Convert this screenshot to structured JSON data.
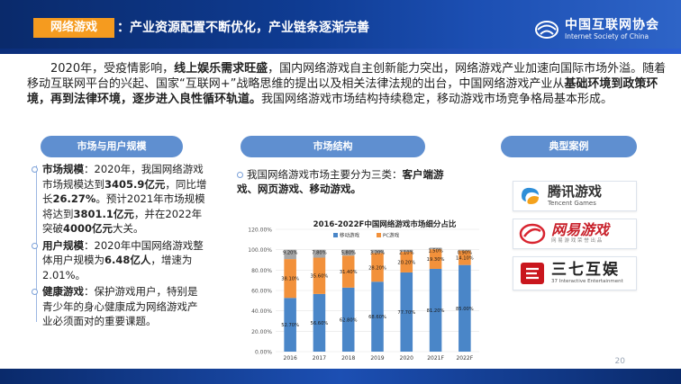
{
  "header": {
    "tag": "网络游戏",
    "title_rest": "：产业资源配置不断优化，产业链条逐渐完善",
    "org_cn": "中国互联网协会",
    "org_en": "Internet Society of China"
  },
  "intro": {
    "t1": "2020年，受疫情影响，",
    "b1": "线上娱乐需求旺盛",
    "t2": "，国内网络游戏自主创新能力突出，网络游戏产业加速向国际市场外溢。随着移动互联网平台的兴起、国家“互联网+”战略思维的提出以及相关法律法规的出台，中国网络游戏产业从",
    "b2": "基础环境到政策环境，再到法律环境，逐步进入良性循环轨道。",
    "t3": "我国网络游戏市场结构持续稳定，移动游戏市场竞争格局基本形成。"
  },
  "pills": {
    "market": "市场与用户规模",
    "structure": "市场结构",
    "cases": "典型案例"
  },
  "col1": {
    "p1_label": "市场规模",
    "p1_a": "：2020年，我国网络游戏市场规模达到",
    "p1_b": "3405.9亿元",
    "p1_c": "，同比增长",
    "p1_d": "26.27%",
    "p1_e": "。预计2021年市场规模将达到",
    "p1_f": "3801.1亿元",
    "p1_g": "，并在2022年突破",
    "p1_h": "4000亿元",
    "p1_i": "大关。",
    "p2_label": "用户规模",
    "p2_a": "：2020年中国网络游戏整体用户规模为",
    "p2_b": "6.48亿人",
    "p2_c": "，增速为2.01%。",
    "p3_label": "健康游戏",
    "p3_a": "：保护游戏用户，特别是青少年的身心健康成为网络游戏产业必须面对的重要课题。"
  },
  "col2": {
    "a": "我国网络游戏市场主要分为三类：",
    "b": "客户端游戏、网页游戏、移动游戏。"
  },
  "cases": {
    "tencent_cn": "腾讯游戏",
    "tencent_en": "Tencent Games",
    "netease_cn": "网易游戏",
    "netease_sub": "网 易 游 戏 荣 誉 出 品",
    "s37_cn": "三七互娱",
    "s37_en": "37 Interactive Entertainment"
  },
  "page_number": "20",
  "colors": {
    "header_dark": "#0a2a6b",
    "header_light": "#2e64c7",
    "accent_orange": "#f59b1f",
    "pill_blue": "#5f8fd0",
    "mobile_blue": "#4a86c8",
    "pc_orange": "#f2913b",
    "web_gray": "#a6a6a6"
  },
  "chart_data": {
    "type": "bar",
    "stacked": true,
    "title": "2016-2022F中国网络游戏市场细分占比",
    "categories": [
      "2016",
      "2017",
      "2018",
      "2019",
      "2020",
      "2021F",
      "2022F"
    ],
    "series": [
      {
        "name": "移动游戏",
        "color": "#4a86c8",
        "values": [
          52.7,
          56.6,
          62.8,
          68.6,
          77.7,
          81.2,
          85.0
        ],
        "labels": [
          "52.70%",
          "56.60%",
          "62.80%",
          "68.60%",
          "77.70%",
          "81.20%",
          "85.00%"
        ]
      },
      {
        "name": "PC游戏",
        "color": "#f2913b",
        "values": [
          38.1,
          35.6,
          31.4,
          28.2,
          20.2,
          19.3,
          14.1
        ],
        "labels": [
          "38.10%",
          "35.60%",
          "31.40%",
          "28.20%",
          "20.20%",
          "19.30%",
          "14.10%"
        ]
      },
      {
        "name": "",
        "color": "#a6a6a6",
        "values": [
          9.2,
          7.8,
          5.8,
          3.2,
          2.1,
          1.5,
          0.9
        ],
        "labels": [
          "9.20%",
          "7.80%",
          "5.80%",
          "3.20%",
          "2.10%",
          "1.50%",
          "0.90%"
        ]
      }
    ],
    "yticks": [
      "0.00%",
      "20.00%",
      "40.00%",
      "60.00%",
      "80.00%",
      "100.00%",
      "120.00%"
    ],
    "ylim": [
      0,
      120
    ],
    "legend": "top",
    "grid": true
  }
}
